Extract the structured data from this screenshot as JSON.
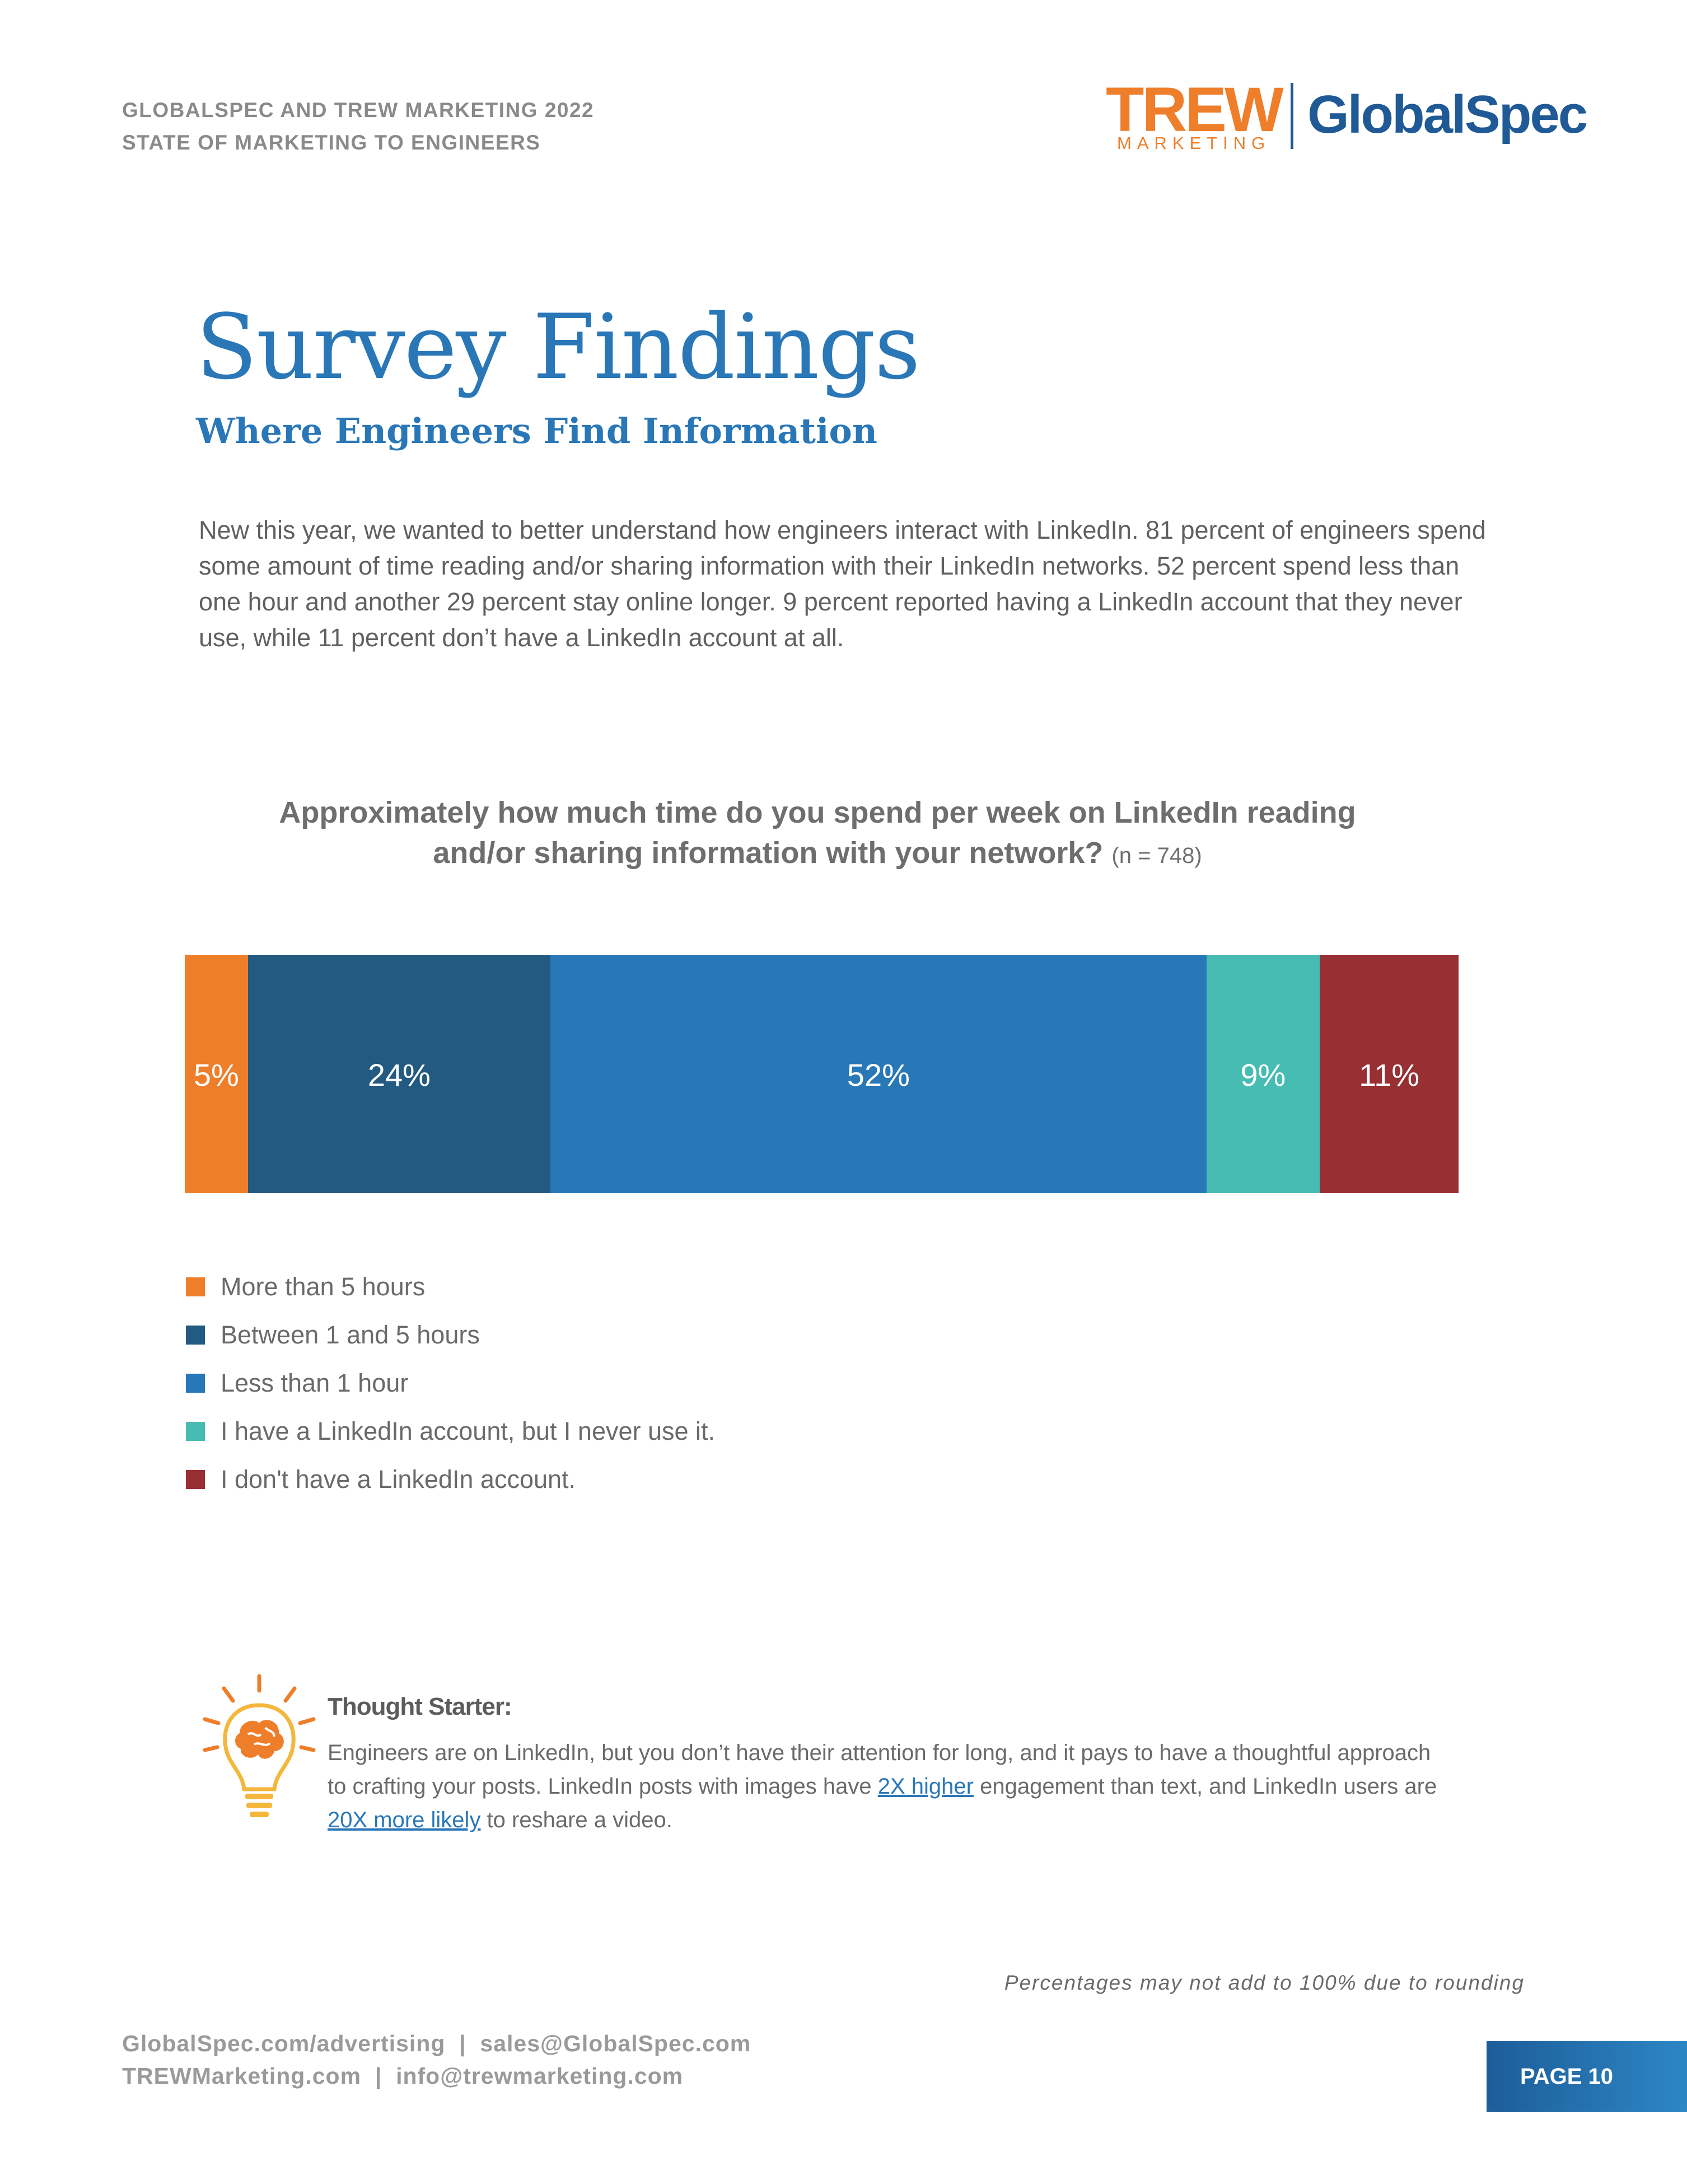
{
  "header": {
    "line1": "GLOBALSPEC AND TREW MARKETING 2022",
    "line2": "STATE OF MARKETING TO ENGINEERS"
  },
  "logo": {
    "trew": "TREW",
    "marketing": "MARKETING",
    "globalspec": "GlobalSpec"
  },
  "title": "Survey Findings",
  "subtitle": "Where Engineers Find Information",
  "intro": "New this year, we wanted to better understand how engineers interact with LinkedIn. 81 percent of engineers spend some amount of time reading and/or sharing information with their LinkedIn networks. 52 percent spend less than one hour and another 29 percent stay online longer. 9 percent reported having a LinkedIn account that they never use, while 11 percent don’t have a LinkedIn account at all.",
  "chart_data": {
    "type": "bar",
    "orientation": "horizontal-stacked",
    "title": "Approximately how much time do you spend per week on LinkedIn reading and/or sharing information with your network?",
    "title_line1": "Approximately how much time do you spend per week on LinkedIn reading",
    "title_line2": "and/or sharing information with your network?",
    "sample": "(n = 748)",
    "series": [
      {
        "name": "More than 5 hours",
        "value": 5,
        "label": "5%",
        "color": "#ee7e2a"
      },
      {
        "name": "Between 1 and 5 hours",
        "value": 24,
        "label": "24%",
        "color": "#235a82"
      },
      {
        "name": "Less than 1 hour",
        "value": 52,
        "label": "52%",
        "color": "#2878b8"
      },
      {
        "name": "I have a LinkedIn account, but I never use it.",
        "value": 9,
        "label": "9%",
        "color": "#47bcb2"
      },
      {
        "name": "I don't have a LinkedIn account.",
        "value": 11,
        "label": "11%",
        "color": "#982f33"
      }
    ],
    "legend_position": "bottom-left"
  },
  "thought_starter": {
    "title": "Thought Starter:",
    "text_before": "Engineers are on LinkedIn, but you don’t have their attention for long, and it pays to have a thoughtful approach to crafting your posts. LinkedIn posts with images have ",
    "link1": "2X higher",
    "text_middle": " engagement than text, and LinkedIn users are ",
    "link2": "20X more likely",
    "text_after": " to reshare a video.",
    "icon": "lightbulb-brain-icon"
  },
  "footnote": "Percentages may not add to 100% due to rounding",
  "footer": {
    "line1": "GlobalSpec.com/advertising  |  sales@GlobalSpec.com",
    "line2": "TREWMarketing.com  |  info@trewmarketing.com"
  },
  "page_label": "PAGE 10"
}
